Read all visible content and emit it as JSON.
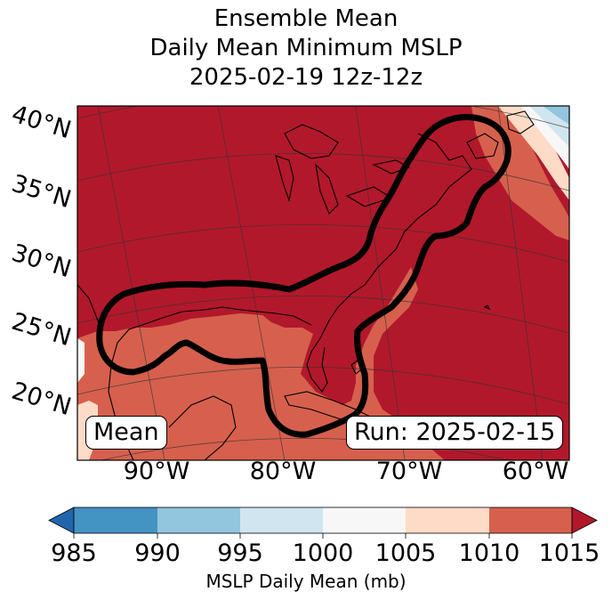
{
  "title": {
    "line1": "Ensemble Mean",
    "line2": "Daily Mean Minimum MSLP",
    "line3": "2025-02-19 12z-12z"
  },
  "map": {
    "lat_labels": [
      "40°N",
      "35°N",
      "30°N",
      "25°N",
      "20°N"
    ],
    "lon_labels": [
      "90°W",
      "80°W",
      "70°W",
      "60°W"
    ],
    "badge_left": "Mean",
    "badge_right": "Run: 2025-02-15",
    "contour_color": "#000000"
  },
  "colorbar": {
    "ticks": [
      "985",
      "990",
      "995",
      "1000",
      "1005",
      "1010",
      "1015"
    ],
    "colors": [
      "#2166ac",
      "#4393c3",
      "#92c5de",
      "#d1e5f0",
      "#f7f7f7",
      "#fddbc7",
      "#d6604d",
      "#b2182b"
    ],
    "label": "MSLP Daily Mean (mb)"
  }
}
